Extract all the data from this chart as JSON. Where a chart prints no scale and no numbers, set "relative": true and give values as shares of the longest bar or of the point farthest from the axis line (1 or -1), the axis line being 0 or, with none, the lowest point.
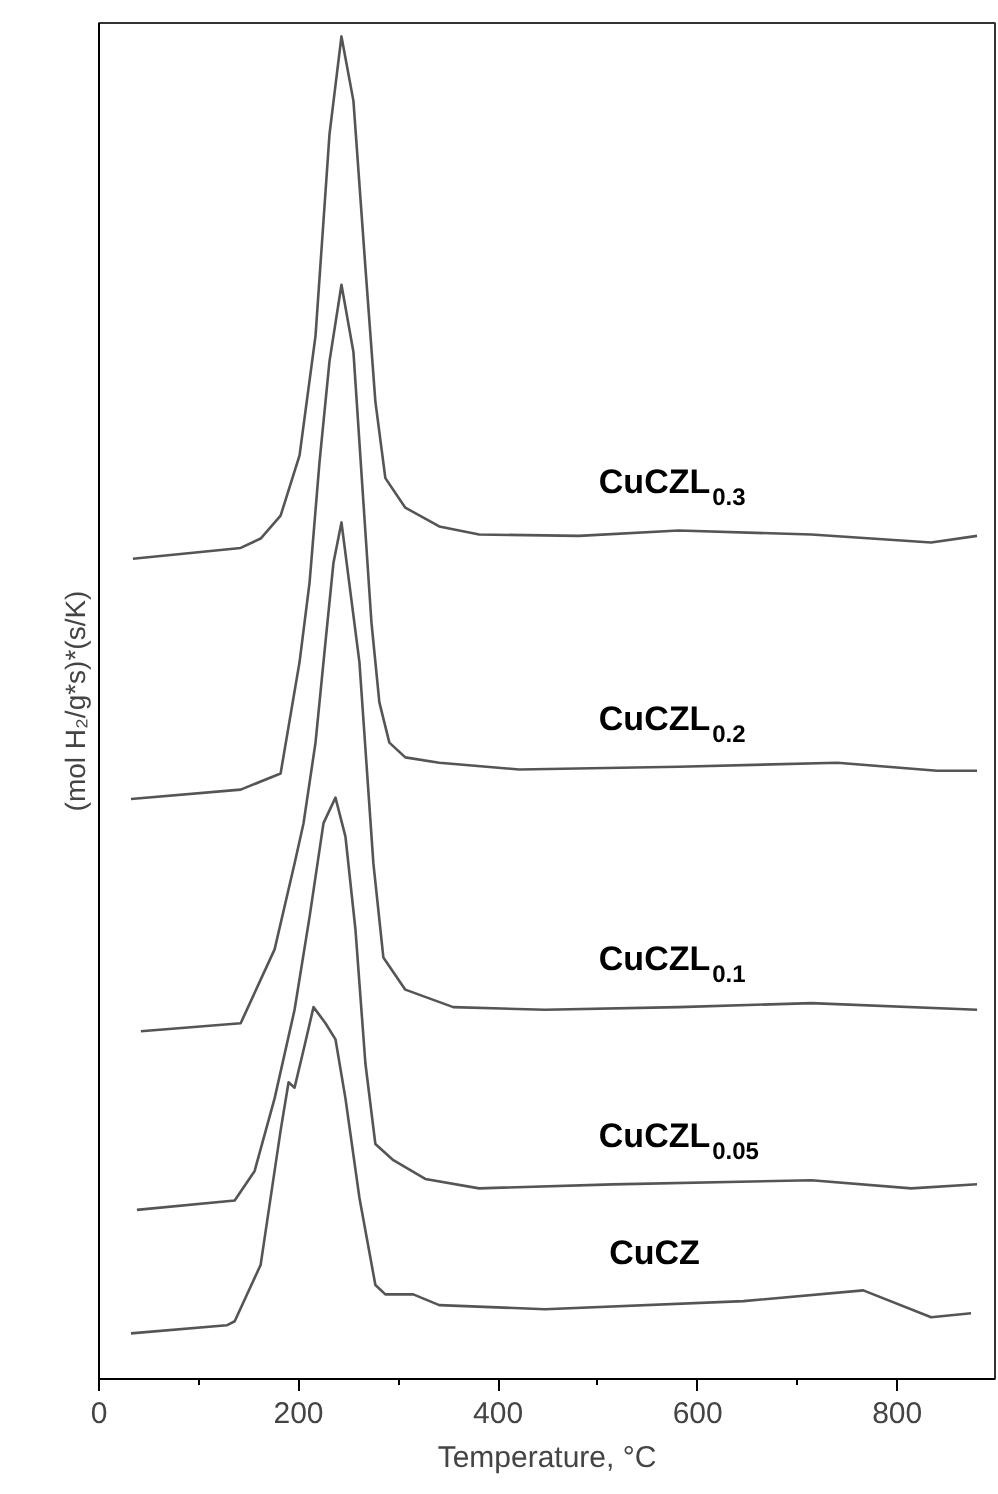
{
  "chart_data": {
    "type": "line",
    "xlabel": "Temperature, °C",
    "ylabel": "(mol H₂/g*s)*(s/K)",
    "relative": true,
    "xlim": [
      0,
      898
    ],
    "xticks": [
      0,
      200,
      400,
      600,
      800
    ],
    "grid": false,
    "marker": "none",
    "line_style": "solid",
    "series": [
      {
        "name": "CuCZL$_{0.3}$",
        "color": "#555555",
        "x": [
          34,
          142,
          162,
          182,
          201,
          217,
          231,
          243,
          255,
          267,
          277,
          287,
          307,
          341,
          381,
          481,
          581,
          714,
          834,
          880
        ],
        "values": [
          0.611,
          0.619,
          0.626,
          0.643,
          0.688,
          0.777,
          0.927,
          1.0,
          0.952,
          0.828,
          0.728,
          0.671,
          0.649,
          0.635,
          0.629,
          0.628,
          0.632,
          0.629,
          0.623,
          0.628
        ]
      },
      {
        "name": "CuCZL$_{0.2}$",
        "color": "#555555",
        "x": [
          32,
          142,
          182,
          201,
          211,
          221,
          231,
          243,
          255,
          265,
          273,
          281,
          291,
          307,
          341,
          421,
          581,
          740,
          840,
          880
        ],
        "values": [
          0.432,
          0.439,
          0.451,
          0.534,
          0.593,
          0.683,
          0.758,
          0.815,
          0.765,
          0.653,
          0.564,
          0.504,
          0.474,
          0.463,
          0.459,
          0.454,
          0.456,
          0.459,
          0.453,
          0.453
        ]
      },
      {
        "name": "CuCZL$_{0.1}$",
        "color": "#555555",
        "x": [
          42,
          142,
          176,
          196,
          205,
          217,
          227,
          235,
          243,
          261,
          275,
          285,
          307,
          355,
          447,
          581,
          714,
          880
        ],
        "values": [
          0.259,
          0.265,
          0.32,
          0.384,
          0.414,
          0.474,
          0.549,
          0.608,
          0.638,
          0.534,
          0.384,
          0.314,
          0.29,
          0.277,
          0.275,
          0.277,
          0.28,
          0.275
        ]
      },
      {
        "name": "CuCZL$_{0.05}$",
        "color": "#555555",
        "x": [
          38,
          136,
          156,
          176,
          196,
          211,
          225,
          237,
          247,
          257,
          267,
          277,
          295,
          327,
          381,
          515,
          714,
          814,
          880
        ],
        "values": [
          0.126,
          0.133,
          0.155,
          0.209,
          0.275,
          0.344,
          0.414,
          0.433,
          0.404,
          0.335,
          0.235,
          0.175,
          0.163,
          0.149,
          0.142,
          0.145,
          0.148,
          0.142,
          0.145
        ]
      },
      {
        "name": "CuCZ",
        "color": "#555555",
        "x": [
          32,
          128,
          136,
          162,
          182,
          190,
          196,
          205,
          215,
          227,
          237,
          247,
          261,
          277,
          287,
          315,
          341,
          447,
          646,
          766,
          834,
          874
        ],
        "values": [
          0.034,
          0.04,
          0.043,
          0.085,
          0.185,
          0.221,
          0.217,
          0.245,
          0.277,
          0.265,
          0.253,
          0.209,
          0.135,
          0.07,
          0.063,
          0.063,
          0.055,
          0.052,
          0.058,
          0.066,
          0.046,
          0.049
        ]
      }
    ]
  }
}
